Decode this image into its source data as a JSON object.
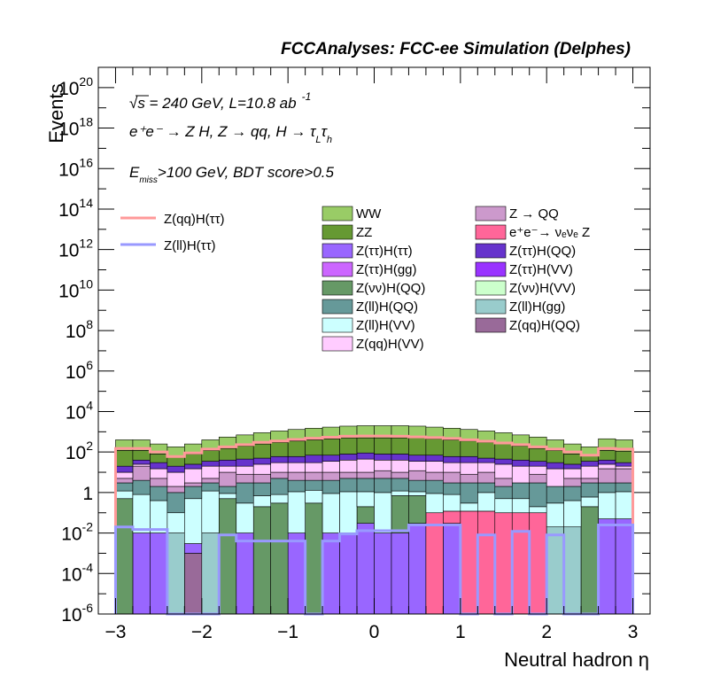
{
  "title": "FCCAnalyses: FCC-ee Simulation (Delphes)",
  "annotations": {
    "line1": "√s = 240 GeV, L=10.8 ab",
    "line1_exp": "-1",
    "line2": "e⁺e⁻ → Z H, Z → qq, H → τ",
    "line2_sub1": "L",
    "line2_tau": "τ",
    "line2_sub2": "h",
    "line3_pre": "E",
    "line3_sub": "miss",
    "line3_post": ">100 GeV, BDT score>0.5"
  },
  "chart_data": {
    "type": "histogram",
    "title": "FCCAnalyses: FCC-ee Simulation (Delphes)",
    "xlabel": "Neutral hadron η",
    "ylabel": "Events",
    "y_scale": "log",
    "xlim": [
      -3.2,
      3.2
    ],
    "ylim": [
      1e-06,
      1e+21
    ],
    "x_ticks": [
      -3,
      -2,
      -1,
      0,
      1,
      2,
      3
    ],
    "x_tick_labels": [
      "−3",
      "−2",
      "−1",
      "0",
      "1",
      "2",
      "3"
    ],
    "y_ticks": [
      {
        "base": "10",
        "exp": "-6",
        "value": 1e-06
      },
      {
        "base": "10",
        "exp": "-4",
        "value": 0.0001
      },
      {
        "base": "10",
        "exp": "-2",
        "value": 0.01
      },
      {
        "base": "1",
        "exp": "",
        "value": 1
      },
      {
        "base": "10",
        "exp": "2",
        "value": 100.0
      },
      {
        "base": "10",
        "exp": "4",
        "value": 10000.0
      },
      {
        "base": "10",
        "exp": "6",
        "value": 1000000.0
      },
      {
        "base": "10",
        "exp": "8",
        "value": 100000000.0
      },
      {
        "base": "10",
        "exp": "10",
        "value": 10000000000.0
      },
      {
        "base": "10",
        "exp": "12",
        "value": 1000000000000.0
      },
      {
        "base": "10",
        "exp": "14",
        "value": 100000000000000.0
      },
      {
        "base": "10",
        "exp": "16",
        "value": 1e+16
      },
      {
        "base": "10",
        "exp": "18",
        "value": 1e+18
      },
      {
        "base": "10",
        "exp": "20",
        "value": 1e+20
      }
    ],
    "bin_edges": [
      -3.0,
      -2.8,
      -2.6,
      -2.4,
      -2.2,
      -2.0,
      -1.8,
      -1.6,
      -1.4,
      -1.2,
      -1.0,
      -0.8,
      -0.6,
      -0.4,
      -0.2,
      0.0,
      0.2,
      0.4,
      0.6,
      0.8,
      1.0,
      1.2,
      1.4,
      1.6,
      1.8,
      2.0,
      2.2,
      2.4,
      2.6,
      2.8,
      3.0
    ],
    "stack_boundaries": [
      {
        "name": "Z(qq)H(QQ)",
        "color": "#996a99",
        "values": [
          1e-06,
          1e-06,
          1e-06,
          1e-06,
          0.001,
          1e-06,
          1e-06,
          1e-06,
          1e-06,
          1e-06,
          1e-06,
          1e-06,
          1e-06,
          1e-06,
          1e-06,
          1e-06,
          1e-06,
          1e-06,
          1e-06,
          1e-06,
          1e-06,
          1e-06,
          1e-06,
          1e-06,
          1e-06,
          1e-06,
          1e-06,
          1e-06,
          1e-06,
          1e-06
        ]
      },
      {
        "name": "Z(ττ)H(ττ)",
        "color": "#9966ff",
        "values": [
          1e-06,
          0.01,
          0.01,
          1e-06,
          0.003,
          1e-06,
          1e-06,
          0.01,
          1e-06,
          1e-06,
          0.01,
          1e-06,
          0.01,
          0.01,
          0.03,
          0.01,
          0.01,
          0.03,
          1e-06,
          0.03,
          1e-06,
          1e-06,
          1e-06,
          1e-06,
          1e-06,
          1e-06,
          1e-06,
          1e-06,
          0.05,
          0.05
        ]
      },
      {
        "name": "e⁺e⁻→ νₑνₑ Z",
        "color": "#ff6699",
        "values": [
          1e-06,
          0.01,
          0.01,
          1e-06,
          0.003,
          1e-06,
          1e-06,
          0.01,
          1e-06,
          1e-06,
          0.01,
          1e-06,
          0.01,
          0.01,
          0.03,
          0.01,
          0.01,
          0.03,
          0.1,
          0.12,
          0.12,
          0.12,
          0.1,
          0.1,
          0.1,
          1e-06,
          1e-06,
          1e-06,
          0.05,
          0.05
        ]
      },
      {
        "name": "Z(ll)H(gg)",
        "color": "#99cccc",
        "values": [
          1e-06,
          0.01,
          0.01,
          0.01,
          0.003,
          0.01,
          1e-06,
          0.01,
          1e-06,
          1e-06,
          0.01,
          1e-06,
          0.01,
          0.01,
          0.03,
          0.01,
          0.01,
          0.03,
          0.1,
          0.12,
          0.12,
          0.12,
          0.1,
          0.1,
          0.1,
          0.02,
          0.02,
          1e-06,
          0.05,
          0.05
        ]
      },
      {
        "name": "Z(νν)H(QQ)",
        "color": "#669966",
        "values": [
          0.5,
          0.01,
          0.01,
          0.01,
          0.003,
          0.01,
          0.5,
          0.01,
          0.2,
          0.3,
          0.01,
          0.3,
          0.01,
          0.01,
          0.2,
          0.01,
          0.7,
          0.7,
          0.1,
          0.12,
          0.12,
          0.12,
          0.1,
          0.1,
          0.1,
          0.02,
          0.02,
          0.2,
          0.05,
          0.05
        ]
      },
      {
        "name": "Z(ll)H(VV)",
        "color": "#ccffff",
        "values": [
          1.2,
          0.8,
          0.4,
          0.1,
          0.5,
          1.2,
          0.9,
          0.3,
          0.7,
          0.8,
          1.1,
          1.3,
          0.9,
          1.1,
          1.1,
          1.0,
          1.2,
          1.1,
          0.9,
          0.8,
          0.3,
          1.0,
          0.5,
          0.5,
          0.2,
          0.3,
          0.4,
          0.6,
          1.0,
          1.1
        ]
      },
      {
        "name": "Z(ll)H(QQ)",
        "color": "#669999",
        "values": [
          3,
          4,
          2,
          1,
          2,
          3,
          2,
          3,
          3,
          5,
          4,
          4,
          4,
          5,
          5,
          5,
          5,
          4,
          4,
          3,
          3,
          3,
          2,
          3,
          3,
          2,
          2,
          3,
          3,
          3
        ]
      },
      {
        "name": "Z → QQ",
        "color": "#cc99cc",
        "values": [
          5,
          20,
          5,
          2,
          3,
          5,
          10,
          8,
          8,
          10,
          10,
          10,
          10,
          10,
          10,
          12,
          10,
          12,
          10,
          10,
          8,
          10,
          5,
          3,
          8,
          2,
          5,
          5,
          15,
          15
        ]
      },
      {
        "name": "Z(qq)H(VV)",
        "color": "#ffccff",
        "values": [
          10,
          25,
          15,
          10,
          15,
          20,
          20,
          20,
          25,
          30,
          30,
          30,
          35,
          40,
          45,
          40,
          40,
          35,
          35,
          30,
          30,
          30,
          25,
          20,
          20,
          15,
          15,
          20,
          25,
          20
        ]
      },
      {
        "name": "Z(ττ)H(QQ)",
        "color": "#6633cc",
        "values": [
          20,
          40,
          30,
          20,
          25,
          35,
          40,
          45,
          50,
          60,
          60,
          70,
          70,
          80,
          90,
          80,
          80,
          70,
          70,
          60,
          60,
          50,
          45,
          40,
          35,
          30,
          25,
          35,
          40,
          30
        ]
      },
      {
        "name": "ZZ",
        "color": "#669933",
        "values": [
          120,
          120,
          80,
          60,
          80,
          120,
          150,
          200,
          250,
          300,
          350,
          400,
          450,
          500,
          500,
          500,
          500,
          500,
          450,
          400,
          350,
          300,
          250,
          200,
          150,
          120,
          80,
          70,
          120,
          110
        ]
      },
      {
        "name": "WW",
        "color": "#99cc66",
        "values": [
          400,
          400,
          250,
          180,
          250,
          400,
          550,
          700,
          900,
          1100,
          1300,
          1500,
          1700,
          1900,
          2000,
          2000,
          2000,
          1900,
          1700,
          1500,
          1300,
          1100,
          900,
          700,
          550,
          400,
          250,
          180,
          450,
          400
        ]
      }
    ],
    "signal_lines": [
      {
        "name": "Z(qq)H(ττ)",
        "color": "#ff9999",
        "values": [
          150,
          150,
          100,
          60,
          90,
          140,
          180,
          230,
          300,
          350,
          420,
          480,
          540,
          600,
          620,
          620,
          600,
          560,
          520,
          470,
          400,
          340,
          280,
          230,
          180,
          140,
          100,
          70,
          150,
          140
        ]
      },
      {
        "name": "Z(ll)H(ττ)",
        "color": "#9999ff",
        "values": [
          0.02,
          0.015,
          0.015,
          3e-07,
          3e-07,
          3e-07,
          0.008,
          0.004,
          0.004,
          0.004,
          0.004,
          3e-07,
          0.004,
          0.009,
          0.013,
          0.013,
          0.013,
          0.025,
          0.025,
          0.025,
          3e-07,
          0.008,
          3e-07,
          0.012,
          3e-07,
          0.008,
          3e-07,
          3e-07,
          0.025,
          0.025
        ]
      }
    ],
    "legend_left": [
      {
        "label": "Z(qq)H(ττ)",
        "color": "#ff9999",
        "kind": "line"
      },
      {
        "label": "Z(ll)H(ττ)",
        "color": "#9999ff",
        "kind": "line"
      }
    ],
    "legend_right": [
      {
        "label": "WW",
        "color": "#99cc66"
      },
      {
        "label": "Z → QQ",
        "color": "#cc99cc"
      },
      {
        "label": "ZZ",
        "color": "#669933"
      },
      {
        "label": "e⁺e⁻→ νₑνₑ Z",
        "color": "#ff6699"
      },
      {
        "label": "Z(ττ)H(ττ)",
        "color": "#9966ff"
      },
      {
        "label": "Z(ττ)H(QQ)",
        "color": "#6633cc"
      },
      {
        "label": "Z(ττ)H(gg)",
        "color": "#cc66ff"
      },
      {
        "label": "Z(ττ)H(VV)",
        "color": "#9933ff"
      },
      {
        "label": "Z(νν)H(QQ)",
        "color": "#669966"
      },
      {
        "label": "Z(νν)H(VV)",
        "color": "#ccffcc"
      },
      {
        "label": "Z(ll)H(QQ)",
        "color": "#669999"
      },
      {
        "label": "Z(ll)H(gg)",
        "color": "#99cccc"
      },
      {
        "label": "Z(ll)H(VV)",
        "color": "#ccffff"
      },
      {
        "label": "Z(qq)H(QQ)",
        "color": "#996a99"
      },
      {
        "label": "Z(qq)H(VV)",
        "color": "#ffccff"
      }
    ]
  }
}
